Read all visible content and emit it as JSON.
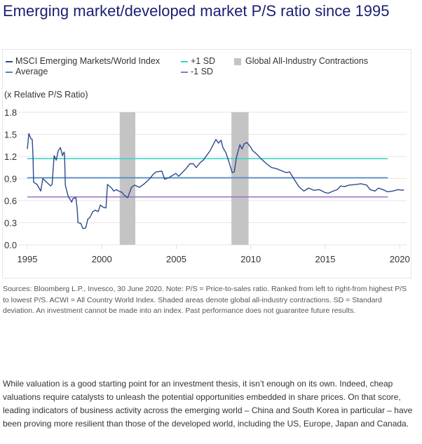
{
  "title": "Emerging market/developed market P/S ratio since 1995",
  "legend": {
    "msci": "MSCI Emerging Markets/World Index",
    "average": "Average",
    "plus_sd": "+1 SD",
    "minus_sd": "-1 SD",
    "contractions": "Global All-Industry Contractions"
  },
  "colors": {
    "msci": "#2b4a8c",
    "average": "#4a86c5",
    "plus_sd": "#3dd3c9",
    "minus_sd": "#9b6fc4",
    "contractions": "#c4c4c4",
    "title": "#1a1f72"
  },
  "sources": "Sources: Bloomberg L.P., Invesco, 30 June 2020. Note: P/S = Price-to-sales ratio. Ranked from left to right-from highest P/S to lowest P/S. ACWI = All Country World Index. Shaded areas denote global all-industry contractions. SD = Standard deviation. An investment cannot be made into an index. Past performance does not guarantee future results.",
  "paragraph": "While valuation is a good starting point for an investment thesis, it isn’t enough on its own. Indeed, cheap valuations require catalysts to unleash the potential opportunities embedded in share prices. On that score, leading indicators of business activity across the emerging world – China and South Korea in particular – have been proving more resilient than those of the developed world, including the US, Europe, Japan and Canada.",
  "chart_data": {
    "type": "line",
    "title": "Emerging market/developed market P/S ratio since 1995",
    "ylabel": "(x Relative P/S Ratio)",
    "xlabel": "",
    "ylim": [
      0.0,
      1.8
    ],
    "xlim": [
      1995,
      2020.5
    ],
    "yticks": [
      "0.0",
      "0.3",
      "0.6",
      "0.9",
      "1.2",
      "1.5",
      "1.8"
    ],
    "ytick_values": [
      0.0,
      0.3,
      0.6,
      0.9,
      1.2,
      1.5,
      1.8
    ],
    "xticks": [
      "1995",
      "2000",
      "2005",
      "2010",
      "2015",
      "2020"
    ],
    "xtick_values": [
      1995,
      2000,
      2005,
      2010,
      2015,
      2020
    ],
    "grid": "horizontal",
    "legend_position": "top",
    "series": [
      {
        "name": "MSCI Emerging Markets/World Index",
        "x": [
          1995.0,
          1995.1,
          1995.24,
          1995.33,
          1995.38,
          1995.42,
          1995.65,
          1995.9,
          1996.04,
          1996.4,
          1996.56,
          1996.66,
          1996.8,
          1996.94,
          1997.08,
          1997.22,
          1997.36,
          1997.46,
          1997.5,
          1997.55,
          1997.74,
          1997.98,
          1998.07,
          1998.26,
          1998.35,
          1998.4,
          1998.59,
          1998.73,
          1998.92,
          1999.06,
          1999.2,
          1999.39,
          1999.58,
          1999.76,
          1999.9,
          2000.09,
          2000.28,
          2000.38,
          2000.66,
          2000.8,
          2000.99,
          2001.13,
          2001.37,
          2001.46,
          2001.74,
          2001.99,
          2002.2,
          2002.53,
          2002.86,
          2003.18,
          2003.46,
          2003.65,
          2004.03,
          2004.22,
          2004.5,
          2004.97,
          2005.16,
          2005.44,
          2005.68,
          2005.91,
          2006.15,
          2006.34,
          2006.58,
          2006.81,
          2007.28,
          2007.66,
          2007.84,
          2008.0,
          2008.13,
          2008.33,
          2008.56,
          2008.75,
          2008.89,
          2009.03,
          2009.27,
          2009.41,
          2009.55,
          2009.74,
          2009.98,
          2010.12,
          2010.4,
          2010.68,
          2011.06,
          2011.39,
          2011.77,
          2012.0,
          2012.38,
          2012.61,
          2012.85,
          2013.04,
          2013.23,
          2013.56,
          2013.89,
          2014.22,
          2014.6,
          2014.97,
          2015.2,
          2015.53,
          2015.81,
          2016.04,
          2016.27,
          2016.6,
          2017.07,
          2017.4,
          2017.78,
          2018.01,
          2018.34,
          2018.58,
          2018.86,
          2019.19,
          2019.52,
          2019.9,
          2020.18,
          2020.28
        ],
        "y": [
          1.3,
          1.51,
          1.44,
          1.43,
          1.2,
          0.85,
          0.82,
          0.73,
          0.9,
          0.83,
          0.8,
          0.82,
          1.21,
          1.15,
          1.28,
          1.32,
          1.21,
          1.26,
          1.23,
          0.81,
          0.66,
          0.58,
          0.63,
          0.64,
          0.47,
          0.3,
          0.29,
          0.22,
          0.23,
          0.35,
          0.37,
          0.45,
          0.47,
          0.45,
          0.54,
          0.51,
          0.5,
          0.82,
          0.77,
          0.73,
          0.75,
          0.73,
          0.71,
          0.68,
          0.64,
          0.78,
          0.81,
          0.78,
          0.83,
          0.89,
          0.96,
          0.99,
          1.0,
          0.89,
          0.91,
          0.97,
          0.93,
          0.99,
          1.04,
          1.1,
          1.1,
          1.05,
          1.11,
          1.15,
          1.28,
          1.43,
          1.38,
          1.42,
          1.32,
          1.25,
          1.11,
          0.98,
          0.99,
          1.18,
          1.36,
          1.3,
          1.37,
          1.39,
          1.33,
          1.28,
          1.23,
          1.17,
          1.1,
          1.05,
          1.03,
          1.01,
          0.98,
          0.99,
          0.91,
          0.85,
          0.79,
          0.73,
          0.77,
          0.74,
          0.75,
          0.71,
          0.7,
          0.73,
          0.75,
          0.8,
          0.79,
          0.81,
          0.82,
          0.83,
          0.81,
          0.75,
          0.73,
          0.77,
          0.75,
          0.72,
          0.73,
          0.75,
          0.74,
          0.75
        ]
      },
      {
        "name": "Average",
        "x": [
          1995,
          2019.2
        ],
        "y": [
          0.91,
          0.91
        ]
      },
      {
        "name": "+1 SD",
        "x": [
          1995,
          2019.2
        ],
        "y": [
          1.17,
          1.17
        ]
      },
      {
        "name": "-1 SD",
        "x": [
          1995,
          2019.2
        ],
        "y": [
          0.65,
          0.65
        ]
      }
    ],
    "shaded_regions": [
      {
        "name": "Global All-Industry Contractions",
        "x0": 2001.2,
        "x1": 2002.25
      },
      {
        "name": "Global All-Industry Contractions",
        "x0": 2008.7,
        "x1": 2009.85
      }
    ]
  }
}
